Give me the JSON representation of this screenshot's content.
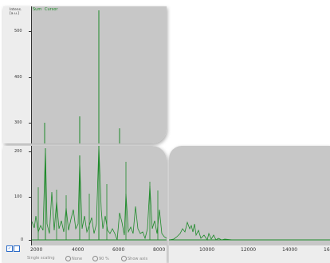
{
  "top_panel": {
    "unit_line1": "Intens.",
    "unit_line2": "[a.u.]",
    "legend": [
      "Sum",
      "Cursor"
    ],
    "y_ticks": [
      "500",
      "400",
      "300"
    ]
  },
  "bottom_left": {
    "y_ticks": [
      "200",
      "100",
      "0"
    ],
    "x_ticks": [
      "2000",
      "4000",
      "6000",
      "8000"
    ],
    "controls": {
      "single_scaling": "Single scaling",
      "none": "None",
      "percent": "90 %",
      "show_axis": "Show axis"
    }
  },
  "bottom_right": {
    "x_ticks": [
      "10000",
      "12000",
      "14000",
      "16"
    ]
  },
  "colors": {
    "trace": "#1e8a2a",
    "plot_bg": "#c7c7c7",
    "panel_bg": "#ededed"
  },
  "icons": [
    "checkbox-icon",
    "checkbox-icon"
  ]
}
